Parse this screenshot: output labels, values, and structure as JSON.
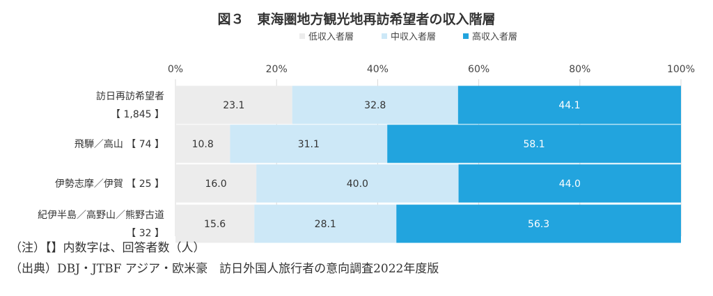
{
  "chart_data": {
    "type": "bar",
    "stacked": "percent",
    "orientation": "horizontal",
    "title": "図３　東海圏地方観光地再訪希望者の収入階層",
    "categories": [
      [
        "訪日再訪希望者",
        "【 1,845 】"
      ],
      [
        "飛騨／高山 【 74 】"
      ],
      [
        "伊勢志摩／伊賀 【 25 】"
      ],
      [
        "紀伊半島／高野山／熊野古道",
        "【 32 】"
      ]
    ],
    "series": [
      {
        "name": "低収入者層",
        "color": "#ececec",
        "values": [
          23.1,
          10.8,
          16.0,
          15.6
        ],
        "labels": [
          "23.1",
          "10.8",
          "16.0",
          "15.6"
        ]
      },
      {
        "name": "中収入者層",
        "color": "#cde8f7",
        "values": [
          32.8,
          31.1,
          40.0,
          28.1
        ],
        "labels": [
          "32.8",
          "31.1",
          "40.0",
          "28.1"
        ]
      },
      {
        "name": "高収入者層",
        "color": "#22a4de",
        "values": [
          44.1,
          58.1,
          44.0,
          56.3
        ],
        "labels": [
          "44.1",
          "58.1",
          "44.0",
          "56.3"
        ]
      }
    ],
    "xlim": [
      0,
      100
    ],
    "xticks": [
      "0%",
      "20%",
      "40%",
      "60%",
      "80%",
      "100%"
    ],
    "grid": true,
    "legend": "top"
  },
  "notes": {
    "note": "（注）【】内数字は、回答者数（人）",
    "source": "（出典）DBJ・JTBF アジア・欧米豪　訪日外国人旅行者の意向調査2022年度版"
  }
}
